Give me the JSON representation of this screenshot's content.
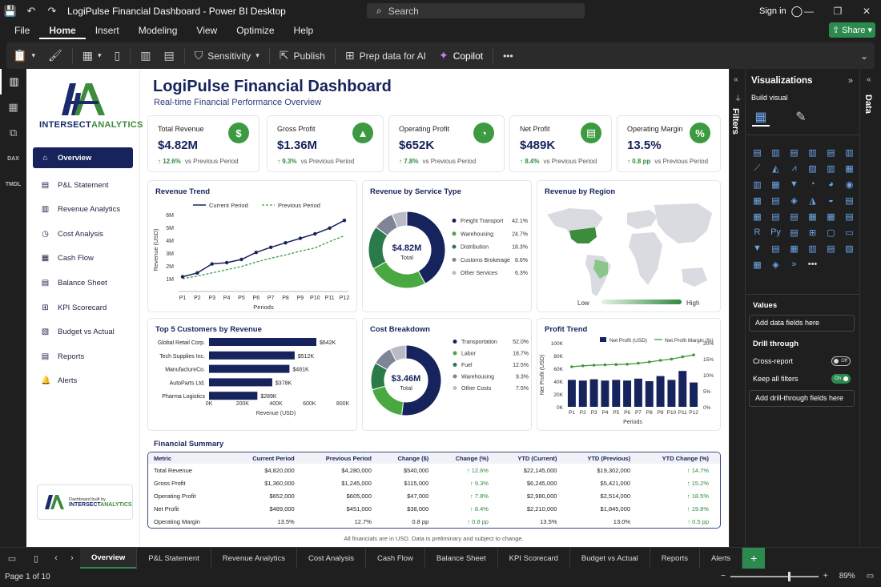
{
  "app": {
    "title": "LogiPulse Financial Dashboard - Power BI Desktop",
    "search_placeholder": "Search",
    "signin": "Sign in",
    "share": "Share"
  },
  "menu": [
    "File",
    "Home",
    "Insert",
    "Modeling",
    "View",
    "Optimize",
    "Help"
  ],
  "ribbon": {
    "sensitivity": "Sensitivity",
    "publish": "Publish",
    "prep": "Prep data for AI",
    "copilot": "Copilot"
  },
  "rail": {
    "dax": "DAX",
    "tmdl": "TMDL"
  },
  "report": {
    "title": "LogiPulse Financial Dashboard",
    "subtitle": "Real-time Financial Performance Overview",
    "logo": {
      "mark": "IA",
      "word1": "INTERSECT",
      "word2": "ANALYTICS"
    },
    "nav": [
      "Overview",
      "P&L Statement",
      "Revenue Analytics",
      "Cost Analysis",
      "Cash Flow",
      "Balance Sheet",
      "KPI Scorecard",
      "Budget vs Actual",
      "Reports",
      "Alerts"
    ],
    "builtby": {
      "line1": "Dashboard built by",
      "brand1": "INTERSECT",
      "brand2": "ANALYTICS"
    },
    "kpis": [
      {
        "label": "Total Revenue",
        "value": "$4.82M",
        "change": "↑ 12.6%",
        "note": "vs Previous Period",
        "icon": "$"
      },
      {
        "label": "Gross Profit",
        "value": "$1.36M",
        "change": "↑ 9.3%",
        "note": "vs Previous Period",
        "icon": "▲"
      },
      {
        "label": "Operating Profit",
        "value": "$652K",
        "change": "↑ 7.8%",
        "note": "vs Previous Period",
        "icon": "◔"
      },
      {
        "label": "Net Profit",
        "value": "$489K",
        "change": "↑ 8.4%",
        "note": "vs Previous Period",
        "icon": "▤"
      },
      {
        "label": "Operating Margin",
        "value": "13.5%",
        "change": "↑ 0.8 pp",
        "note": "vs Previous Period",
        "icon": "%"
      }
    ],
    "footnote": "All financials are in USD. Data is preliminary and subject to change."
  },
  "chart_data": [
    {
      "type": "line",
      "id": "revenue-trend",
      "title": "Revenue Trend",
      "xlabel": "Periods",
      "ylabel": "Revenue (USD)",
      "x": [
        "P1",
        "P2",
        "P3",
        "P4",
        "P5",
        "P6",
        "P7",
        "P8",
        "P9",
        "P10",
        "P11",
        "P12"
      ],
      "yticks": [
        "1M",
        "2M",
        "3M",
        "4M",
        "5M",
        "6M"
      ],
      "ylim": [
        0,
        6.5
      ],
      "series": [
        {
          "name": "Current Period",
          "values": [
            1.15,
            1.45,
            2.15,
            2.25,
            2.5,
            3.05,
            3.45,
            3.8,
            4.15,
            4.5,
            4.95,
            5.55
          ]
        },
        {
          "name": "Previous Period",
          "values": [
            1.0,
            1.2,
            1.45,
            1.7,
            1.95,
            2.3,
            2.6,
            2.85,
            3.15,
            3.4,
            3.9,
            4.35
          ]
        }
      ]
    },
    {
      "type": "pie",
      "id": "revenue-by-service",
      "title": "Revenue by Service Type",
      "center_value": "$4.82M",
      "center_label": "Total",
      "slices": [
        {
          "name": "Freight Transport",
          "value": 42.1,
          "label": "42.1%",
          "color": "#16235c"
        },
        {
          "name": "Warehousing",
          "value": 24.7,
          "label": "24.7%",
          "color": "#4aa840"
        },
        {
          "name": "Distribution",
          "value": 18.3,
          "label": "18.3%",
          "color": "#2a7a4a"
        },
        {
          "name": "Customs Brokerage",
          "value": 8.6,
          "label": "8.6%",
          "color": "#7f8596"
        },
        {
          "name": "Other Services",
          "value": 6.3,
          "label": "6.3%",
          "color": "#b9bcc6"
        }
      ]
    },
    {
      "type": "map",
      "id": "revenue-by-region",
      "title": "Revenue by Region",
      "legend_low": "Low",
      "legend_high": "High"
    },
    {
      "type": "bar",
      "id": "top-customers",
      "title": "Top 5 Customers by Revenue",
      "xlabel": "Revenue (USD)",
      "categories": [
        "Global Retail Corp.",
        "Tech Supplies Inc.",
        "ManufactureCo.",
        "AutoParts Ltd.",
        "Pharma Logistics"
      ],
      "values": [
        642,
        512,
        481,
        378,
        289
      ],
      "labels": [
        "$642K",
        "$512K",
        "$481K",
        "$378K",
        "$289K"
      ],
      "xticks": [
        "0K",
        "200K",
        "400K",
        "600K",
        "800K"
      ],
      "xlim": [
        0,
        800
      ]
    },
    {
      "type": "pie",
      "id": "cost-breakdown",
      "title": "Cost Breakdown",
      "center_value": "$3.46M",
      "center_label": "Total",
      "slices": [
        {
          "name": "Transportation",
          "value": 52.0,
          "label": "52.0%",
          "color": "#16235c"
        },
        {
          "name": "Labor",
          "value": 18.7,
          "label": "18.7%",
          "color": "#4aa840"
        },
        {
          "name": "Fuel",
          "value": 12.5,
          "label": "12.5%",
          "color": "#2a7a4a"
        },
        {
          "name": "Warehousing",
          "value": 9.3,
          "label": "9.3%",
          "color": "#7f8596"
        },
        {
          "name": "Other Costs",
          "value": 7.5,
          "label": "7.5%",
          "color": "#b9bcc6"
        }
      ]
    },
    {
      "type": "bar",
      "id": "profit-trend",
      "title": "Profit Trend",
      "xlabel": "Periods",
      "ylabel": "Net Profit (USD)",
      "x": [
        "P1",
        "P2",
        "P3",
        "P4",
        "P5",
        "P6",
        "P7",
        "P8",
        "P9",
        "P10",
        "P11",
        "P12"
      ],
      "yticks": [
        "0K",
        "20K",
        "40K",
        "60K",
        "80K",
        "100K"
      ],
      "ylim": [
        0,
        100
      ],
      "y2ticks": [
        "0%",
        "5%",
        "10%",
        "15%",
        "20%"
      ],
      "y2lim": [
        0,
        20
      ],
      "series": [
        {
          "name": "Net Profit (USD)",
          "values": [
            42,
            41,
            43,
            41,
            42,
            41,
            44,
            40,
            48,
            42,
            56,
            38
          ]
        },
        {
          "name": "Net Profit Margin (%)",
          "values": [
            12.5,
            12.8,
            13.0,
            13.1,
            13.2,
            13.3,
            13.6,
            14.0,
            14.5,
            14.9,
            15.6,
            16.2
          ]
        }
      ]
    }
  ],
  "summary": {
    "title": "Financial Summary",
    "headers": [
      "Metric",
      "Current Period",
      "Previous Period",
      "Change ($)",
      "Change (%)",
      "YTD (Current)",
      "YTD (Previous)",
      "YTD Change (%)"
    ],
    "rows": [
      [
        "Total Revenue",
        "$4,820,000",
        "$4,280,000",
        "$540,000",
        "↑ 12.6%",
        "$22,145,000",
        "$19,302,000",
        "↑ 14.7%"
      ],
      [
        "Gross Profit",
        "$1,360,000",
        "$1,245,000",
        "$115,000",
        "↑ 9.3%",
        "$6,245,000",
        "$5,421,000",
        "↑ 15.2%"
      ],
      [
        "Operating Profit",
        "$652,000",
        "$605,000",
        "$47,000",
        "↑ 7.8%",
        "$2,980,000",
        "$2,514,000",
        "↑ 18.5%"
      ],
      [
        "Net Profit",
        "$489,000",
        "$451,000",
        "$38,000",
        "↑ 8.4%",
        "$2,210,000",
        "$1,845,000",
        "↑ 19.8%"
      ],
      [
        "Operating Margin",
        "13.5%",
        "12.7%",
        "0.8 pp",
        "↑ 0.8 pp",
        "13.5%",
        "13.0%",
        "↑ 0.5 pp"
      ]
    ]
  },
  "panes": {
    "filters": "Filters",
    "data": "Data",
    "visualizations": "Visualizations",
    "build_visual": "Build visual",
    "values": "Values",
    "add_fields": "Add data fields here",
    "drill": "Drill through",
    "cross_report": "Cross-report",
    "cross_report_state": "Off",
    "keep_filters": "Keep all filters",
    "keep_filters_state": "On",
    "add_drill": "Add drill-through fields here"
  },
  "tabs": [
    "Overview",
    "P&L Statement",
    "Revenue Analytics",
    "Cost Analysis",
    "Cash Flow",
    "Balance Sheet",
    "KPI Scorecard",
    "Budget vs Actual",
    "Reports",
    "Alerts"
  ],
  "status": {
    "page": "Page 1 of 10",
    "zoom": "89%"
  }
}
